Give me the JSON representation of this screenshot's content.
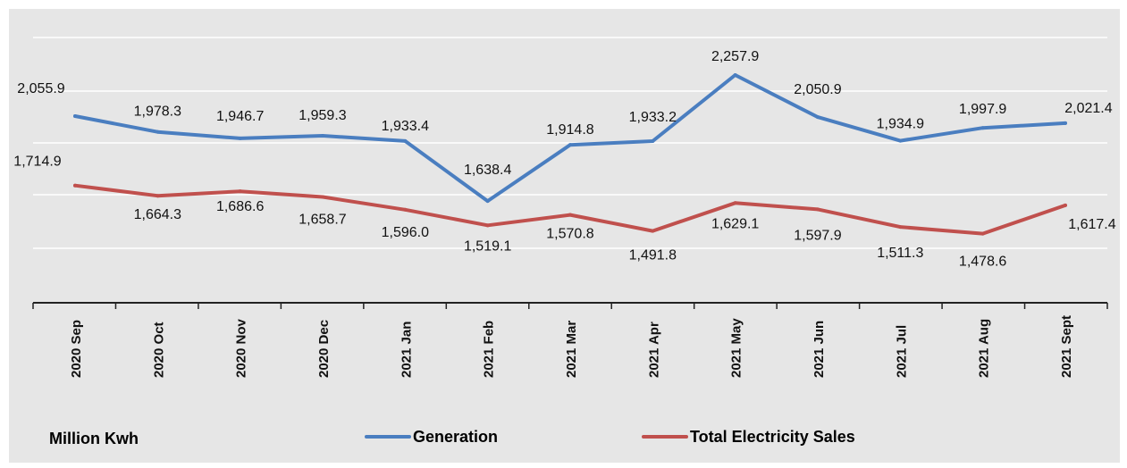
{
  "chart_data": {
    "type": "line",
    "categories": [
      "2020 Sep",
      "2020 Oct",
      "2020 Nov",
      "2020 Dec",
      "2021 Jan",
      "2021 Feb",
      "2021 Mar",
      "2021 Apr",
      "2021 May",
      "2021 Jun",
      "2021 Jul",
      "2021 Aug",
      "2021 Sept"
    ],
    "series": [
      {
        "name": "Generation",
        "color": "#4a7ec0",
        "values": [
          2055.9,
          1978.3,
          1946.7,
          1959.3,
          1933.4,
          1638.4,
          1914.8,
          1933.2,
          2257.9,
          2050.9,
          1934.9,
          1997.9,
          2021.4
        ],
        "labels": [
          "2,055.9",
          "1,978.3",
          "1,946.7",
          "1,959.3",
          "1,933.4",
          "1,638.4",
          "1,914.8",
          "1,933.2",
          "2,257.9",
          "2,050.9",
          "1,934.9",
          "1,997.9",
          "2,021.4"
        ]
      },
      {
        "name": "Total Electricity Sales",
        "color": "#c0504d",
        "values": [
          1714.9,
          1664.3,
          1686.6,
          1658.7,
          1596.0,
          1519.1,
          1570.8,
          1491.8,
          1629.1,
          1597.9,
          1511.3,
          1478.6,
          1617.4
        ],
        "labels": [
          "1,714.9",
          "1,664.3",
          "1,686.6",
          "1,658.7",
          "1,596.0",
          "1,519.1",
          "1,570.8",
          "1,491.8",
          "1,629.1",
          "1,597.9",
          "1,511.3",
          "1,478.6",
          "1,617.4"
        ]
      }
    ],
    "unit_label": "Million Kwh",
    "legend_position": "bottom",
    "grid": "horizontal"
  }
}
